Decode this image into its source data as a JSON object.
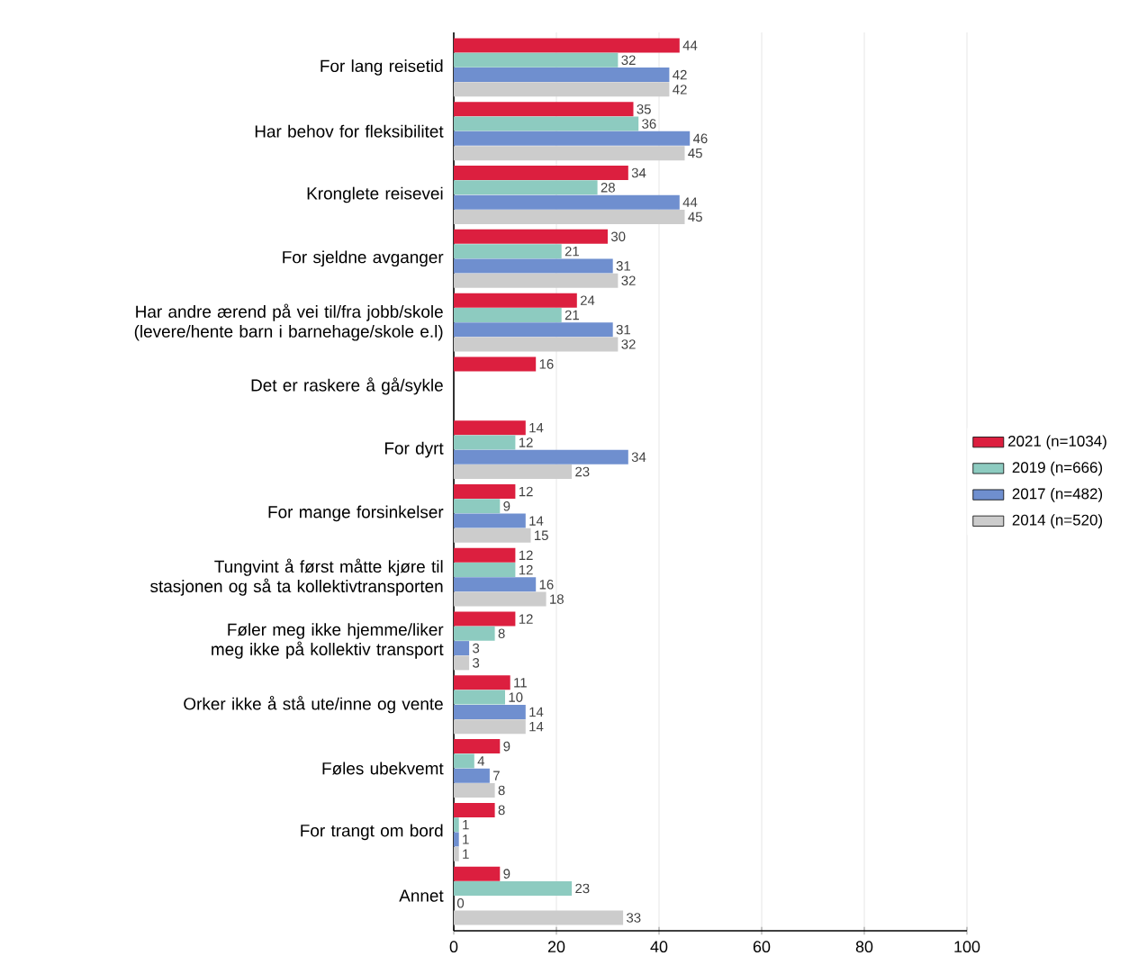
{
  "chart_data": {
    "type": "bar",
    "orientation": "horizontal",
    "categories": [
      "For lang reisetid",
      "Har behov for fleksibilitet",
      "Kronglete reisevei",
      "For sjeldne avganger",
      "Har andre ærend på vei til/fra jobb/skole (levere/hente barn i barnehage/skole e.l)",
      "Det er raskere å gå/sykle",
      "For dyrt",
      "For mange forsinkelser",
      "Tungvint å først måtte kjøre til stasjonen og så ta kollektivtransporten",
      "Føler meg ikke hjemme/liker meg ikke på kollektiv transport",
      "Orker ikke å stå ute/inne og vente",
      "Føles ubekvemt",
      "For trangt om bord",
      "Annet"
    ],
    "series": [
      {
        "name": "2021 (n=1034)",
        "color": "#dc1f3f",
        "values": [
          44,
          35,
          34,
          30,
          24,
          16,
          14,
          12,
          12,
          12,
          11,
          9,
          8,
          9
        ]
      },
      {
        "name": "2019 (n=666)",
        "color": "#8dcbc0",
        "values": [
          32,
          36,
          28,
          21,
          21,
          null,
          12,
          9,
          12,
          8,
          10,
          4,
          1,
          23
        ]
      },
      {
        "name": "2017 (n=482)",
        "color": "#6f8fcf",
        "values": [
          42,
          46,
          44,
          31,
          31,
          null,
          34,
          14,
          16,
          3,
          14,
          7,
          1,
          0
        ]
      },
      {
        "name": "2014 (n=520)",
        "color": "#cccccc",
        "values": [
          42,
          45,
          45,
          32,
          32,
          null,
          23,
          15,
          18,
          3,
          14,
          8,
          1,
          33
        ]
      }
    ],
    "xlim": [
      0,
      100
    ],
    "xticks": [
      0,
      20,
      40,
      60,
      80,
      100
    ],
    "data_labels": true,
    "grid": "x",
    "legend": "right"
  }
}
